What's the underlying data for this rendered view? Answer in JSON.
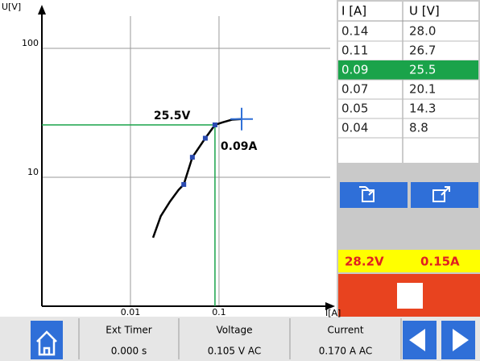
{
  "chart_data": {
    "type": "line",
    "x_label": "I[A]",
    "y_label": "U[V]",
    "x": [
      0.018,
      0.022,
      0.028,
      0.035,
      0.04,
      0.05,
      0.07,
      0.09,
      0.11,
      0.14,
      0.18
    ],
    "values": [
      3.4,
      5,
      6.5,
      8,
      8.8,
      14.3,
      20.1,
      25.5,
      26.7,
      28.0,
      28.3
    ],
    "color": "#000000",
    "marker_color": "#2a4ab0",
    "xlim": [
      0.001,
      1.8
    ],
    "ylim": [
      1,
      178
    ],
    "xticks": [
      0.01,
      0.1
    ],
    "yticks": [
      10,
      100
    ],
    "log_x": true,
    "log_y": true,
    "grid": true,
    "cursor": {
      "x": 0.09,
      "y": 25.5,
      "x_label": "0.09A",
      "y_label": "25.5V",
      "color": "#1aa34a"
    }
  },
  "table": {
    "columns": [
      "I [A]",
      "U [V]"
    ],
    "rows": [
      [
        "0.14",
        "28.0"
      ],
      [
        "0.11",
        "26.7"
      ],
      [
        "0.09",
        "25.5"
      ],
      [
        "0.07",
        "20.1"
      ],
      [
        "0.05",
        "14.3"
      ],
      [
        "0.04",
        "8.8"
      ]
    ],
    "selected_row": 2
  },
  "live_readout": {
    "voltage": "28.2V",
    "current": "0.15A"
  },
  "status_bar": [
    {
      "label": "Ext Timer",
      "value": "0.000 s"
    },
    {
      "label": "Voltage",
      "value": "0.105 V AC"
    },
    {
      "label": "Current",
      "value": "0.170 A AC"
    }
  ]
}
